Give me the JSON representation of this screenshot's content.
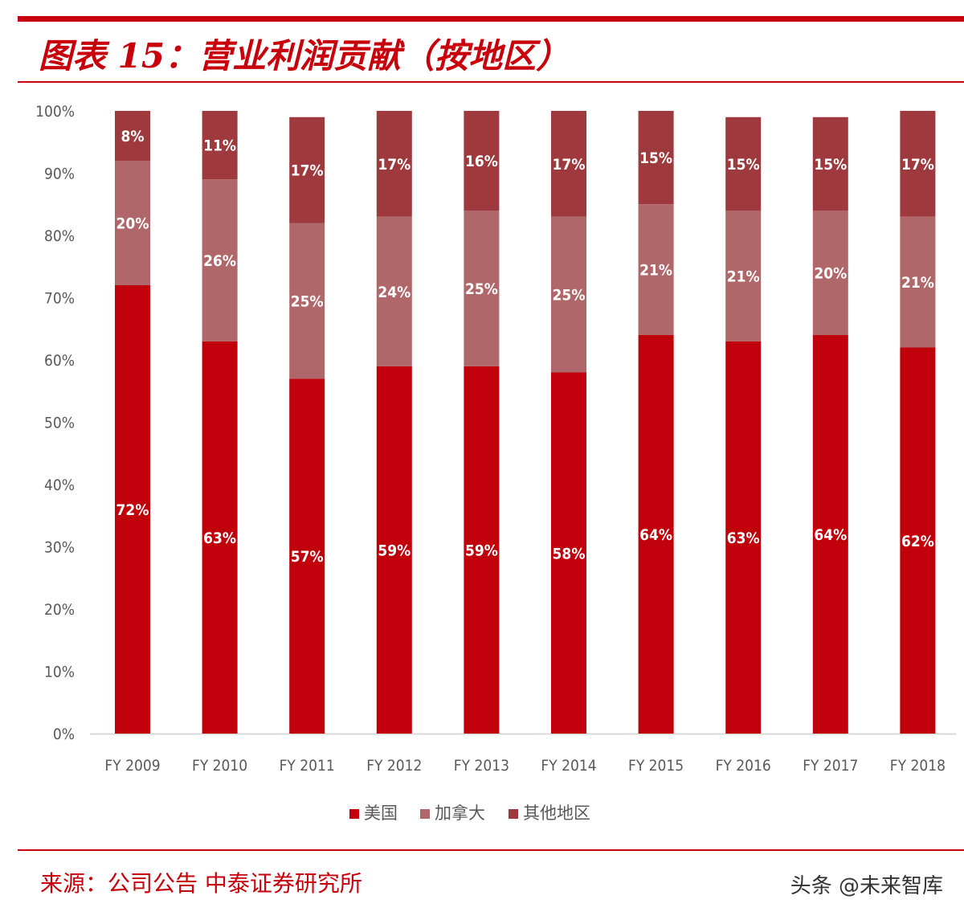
{
  "header": {
    "title": "图表 15：营业利润贡献（按地区）"
  },
  "footer": {
    "source": "来源：公司公告 中泰证券研究所",
    "watermark": "头条 @未来智库"
  },
  "colors": {
    "accent": "#c8000b",
    "series_us": "#c0000b",
    "series_canada": "#b0676a",
    "series_other": "#9e3a3d",
    "axis_text": "#595959",
    "axis_line": "#d9d9d9"
  },
  "chart_data": {
    "type": "bar",
    "stacked": true,
    "title": "",
    "xlabel": "",
    "ylabel": "",
    "ylim": [
      0,
      100
    ],
    "y_ticks": [
      "0%",
      "10%",
      "20%",
      "30%",
      "40%",
      "50%",
      "60%",
      "70%",
      "80%",
      "90%",
      "100%"
    ],
    "categories": [
      "FY 2009",
      "FY 2010",
      "FY 2011",
      "FY 2012",
      "FY 2013",
      "FY 2014",
      "FY 2015",
      "FY 2016",
      "FY 2017",
      "FY 2018"
    ],
    "series": [
      {
        "name": "美国",
        "color": "#c0000b",
        "values": [
          72,
          63,
          57,
          59,
          59,
          58,
          64,
          63,
          64,
          62
        ]
      },
      {
        "name": "加拿大",
        "color": "#b0676a",
        "values": [
          20,
          26,
          25,
          24,
          25,
          25,
          21,
          21,
          20,
          21
        ]
      },
      {
        "name": "其他地区",
        "color": "#9e3a3d",
        "values": [
          8,
          11,
          17,
          17,
          16,
          17,
          15,
          15,
          15,
          17
        ]
      }
    ],
    "value_label_suffix": "%",
    "grid": false,
    "legend_position": "bottom"
  }
}
